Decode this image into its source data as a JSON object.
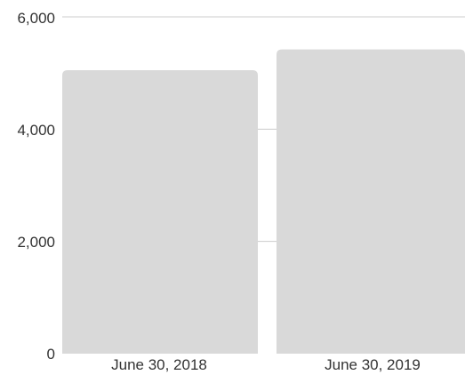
{
  "chart_data": {
    "type": "bar",
    "categories": [
      "June 30, 2018",
      "June 30, 2019"
    ],
    "values": [
      5050,
      5420
    ],
    "title": "",
    "xlabel": "",
    "ylabel": "",
    "ylim": [
      0,
      6000
    ],
    "y_ticks": [
      "0",
      "2,000",
      "4,000",
      "6,000"
    ],
    "grid": true,
    "legend": "none",
    "bar_color": "#d9d9d9",
    "grid_color": "#cccccc"
  }
}
